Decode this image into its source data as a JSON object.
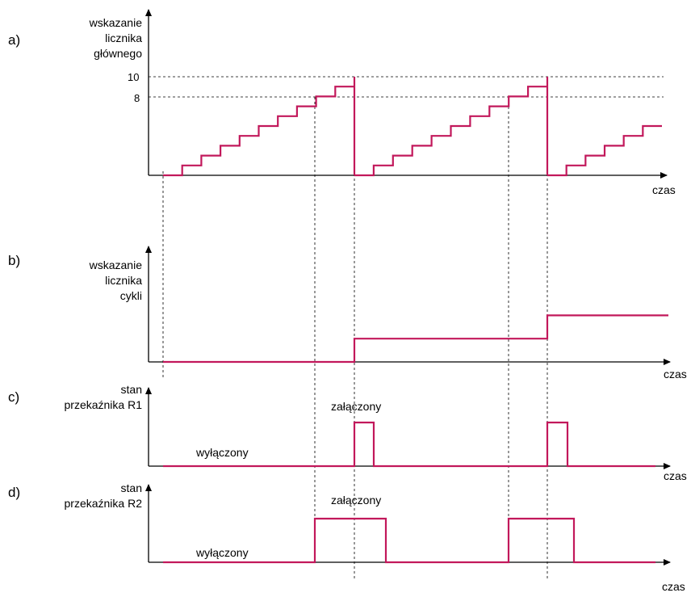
{
  "colors": {
    "signal": "#c2185b",
    "axis": "#000000",
    "guide": "#000000"
  },
  "panels": [
    {
      "id": "a",
      "label": "a)",
      "ylabel": [
        "wskazanie",
        "licznika",
        "głównego"
      ],
      "xlabel": "czas",
      "ticks": [
        "10",
        "8"
      ]
    },
    {
      "id": "b",
      "label": "b)",
      "ylabel": [
        "wskazanie",
        "licznika",
        "cykli"
      ],
      "xlabel": "czas"
    },
    {
      "id": "c",
      "label": "c)",
      "ylabel": [
        "stan",
        "przekaźnika R1"
      ],
      "xlabel": "czas",
      "state_on": "załączony",
      "state_off": "wyłączony"
    },
    {
      "id": "d",
      "label": "d)",
      "ylabel": [
        "stan",
        "przekaźnika R2"
      ],
      "xlabel": "czas",
      "state_on": "załączony",
      "state_off": "wyłączony"
    }
  ],
  "signals": {
    "main_counter_steps": [
      0,
      1,
      2,
      3,
      4,
      5,
      6,
      7,
      8,
      9,
      10,
      0,
      1,
      2,
      3,
      4,
      5,
      6,
      7,
      8,
      9,
      10,
      0,
      1,
      2,
      3,
      4,
      5
    ],
    "main_counter_max": 10,
    "main_counter_threshold": 8,
    "cycle_counter_levels": [
      0,
      1,
      2
    ],
    "relay_R1": "on for one step after reset (count 10)",
    "relay_R2": "on from count 8 until reset step"
  }
}
